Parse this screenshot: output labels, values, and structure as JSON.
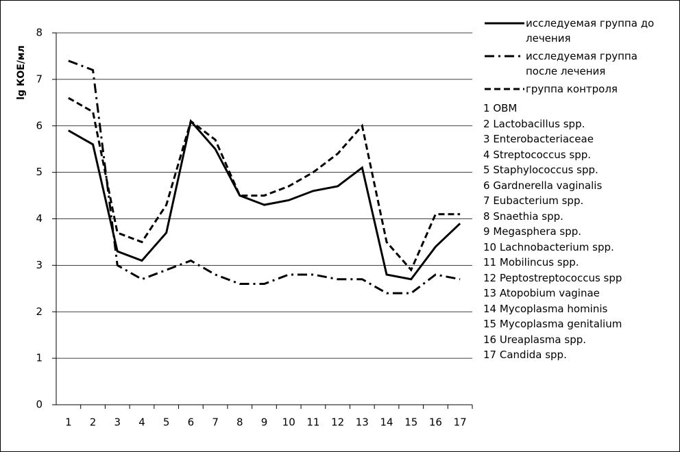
{
  "chart_data": {
    "type": "line",
    "y_label": "lg КОЕ/мл",
    "categories": [
      "1",
      "2",
      "3",
      "4",
      "5",
      "6",
      "7",
      "8",
      "9",
      "10",
      "11",
      "12",
      "13",
      "14",
      "15",
      "16",
      "17"
    ],
    "category_names": [
      "ОВМ",
      "Lactobacillus spp.",
      "Enterobacteriaceae",
      "Streptococcus spp.",
      "Staphylococcus spp.",
      "Gardnerella vaginalis",
      "Eubacterium spp.",
      "Snaethia spp.",
      "Megasphera spp.",
      "Lachnobacterium spp.",
      "Mobilincus spp.",
      "Peptostreptococcus spp",
      "Atopobium vaginae",
      "Mycoplasma hominis",
      "Mycoplasma genitalium",
      "Ureaplasma spp.",
      "Candida spp."
    ],
    "series": [
      {
        "name": "исследуемая группа до лечения",
        "color": "#000000",
        "line_style": "solid",
        "values": [
          5.9,
          5.6,
          3.3,
          3.1,
          3.7,
          6.1,
          5.5,
          4.5,
          4.3,
          4.4,
          4.6,
          4.7,
          5.1,
          2.8,
          2.7,
          3.4,
          3.9
        ]
      },
      {
        "name": "исследуемая группа после лечения",
        "color": "#000000",
        "line_style": "dashdot",
        "values": [
          7.4,
          7.2,
          3.0,
          2.7,
          2.9,
          3.1,
          2.8,
          2.6,
          2.6,
          2.8,
          2.8,
          2.7,
          2.7,
          2.4,
          2.4,
          2.8,
          2.7
        ]
      },
      {
        "name": "группа контроля",
        "color": "#000000",
        "line_style": "dashed",
        "values": [
          6.6,
          6.3,
          3.7,
          3.5,
          4.3,
          6.1,
          5.7,
          4.5,
          4.5,
          4.7,
          5.0,
          5.4,
          6.0,
          3.5,
          2.9,
          4.1,
          4.1
        ]
      }
    ],
    "ylim": [
      0,
      8
    ],
    "yticks": [
      0,
      1,
      2,
      3,
      4,
      5,
      6,
      7,
      8
    ],
    "grid": true
  }
}
